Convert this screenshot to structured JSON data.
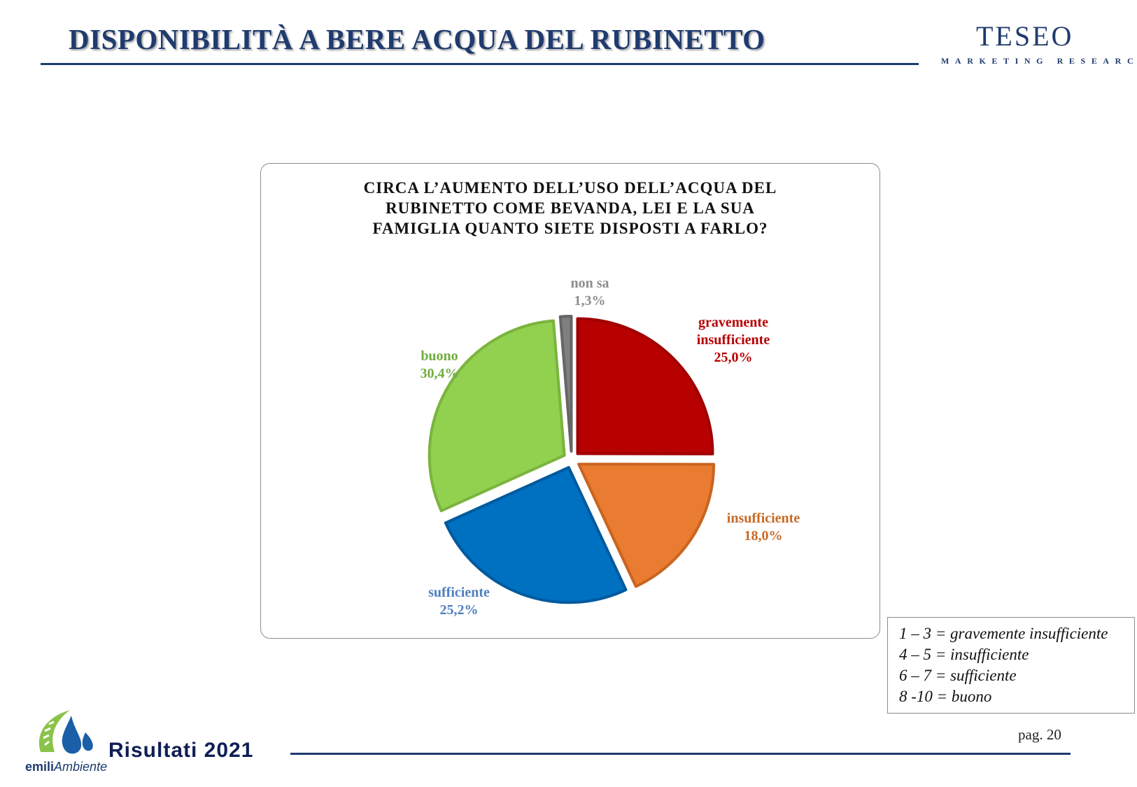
{
  "header": {
    "title": "DISPONIBILITÀ A BERE ACQUA DEL RUBINETTO",
    "brand_name": "TESEO",
    "brand_subtitle": "MARKETING RESEARCH"
  },
  "chart_data": {
    "type": "pie",
    "title_lines": [
      "CIRCA L’AUMENTO DELL’USO DELL’ACQUA DEL",
      "RUBINETTO COME BEVANDA, LEI E LA SUA",
      "FAMIGLIA QUANTO SIETE DISPOSTI A FARLO?"
    ],
    "slices": [
      {
        "label": "gravemente insufficiente",
        "label_lines": [
          "gravemente",
          "insufficiente"
        ],
        "value": 25.0,
        "value_label": "25,0%",
        "color": "#b70000",
        "border": "#a00000"
      },
      {
        "label": "insufficiente",
        "label_lines": [
          "insufficiente"
        ],
        "value": 18.0,
        "value_label": "18,0%",
        "color": "#e97c30",
        "border": "#c96420"
      },
      {
        "label": "sufficiente",
        "label_lines": [
          "sufficiente"
        ],
        "value": 25.2,
        "value_label": "25,2%",
        "color": "#0070c0",
        "border": "#005a9e"
      },
      {
        "label": "buono",
        "label_lines": [
          "buono"
        ],
        "value": 30.4,
        "value_label": "30,4%",
        "color": "#92d050",
        "border": "#7ab43e"
      },
      {
        "label": "non sa",
        "label_lines": [
          "non sa"
        ],
        "value": 1.3,
        "value_label": "1,3%",
        "color": "#7f7f7f",
        "border": "#666666"
      }
    ],
    "label_colors": [
      "#b70000",
      "#c86a25",
      "#4f7fc0",
      "#6fad3e",
      "#8c8c8c"
    ]
  },
  "legend": {
    "lines": [
      "1 – 3 = gravemente insufficiente",
      "4 – 5 = insufficiente",
      "6 – 7 = sufficiente",
      "8 -10 = buono"
    ]
  },
  "footer": {
    "label": "Risultati 2021",
    "page": "pag. 20",
    "logo_text_bold": "emili",
    "logo_text_italic": "Ambiente"
  }
}
